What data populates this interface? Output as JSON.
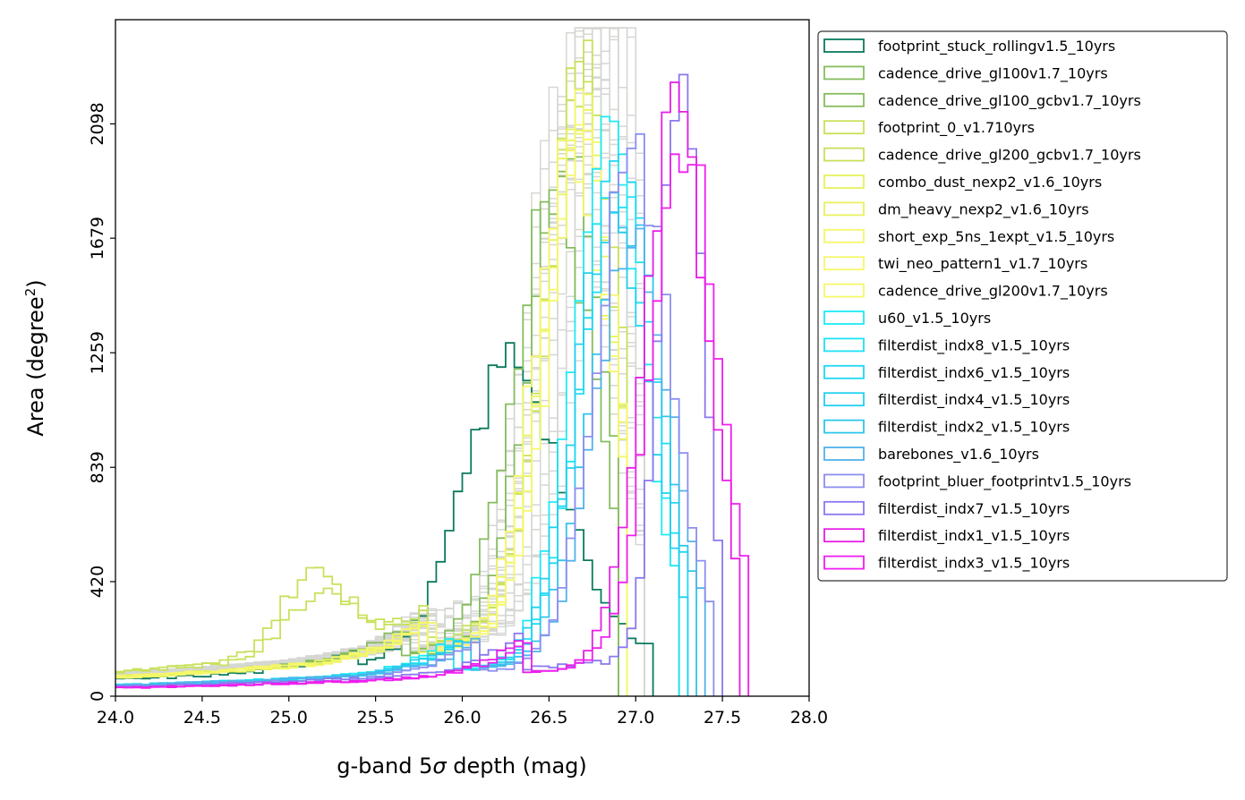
{
  "chart_data": {
    "type": "step-histogram",
    "xlabel_prefix": "g-band 5",
    "xlabel_sigma": "σ",
    "xlabel_suffix": " depth (mag)",
    "ylabel_main": "Area (degree",
    "ylabel_sup": "2",
    "ylabel_close": ")",
    "xlim": [
      24.0,
      28.0
    ],
    "ylim": [
      0,
      2480
    ],
    "xticks": [
      "24.0",
      "24.5",
      "25.0",
      "25.5",
      "26.0",
      "26.5",
      "27.0",
      "27.5",
      "28.0"
    ],
    "yticks": [
      "0",
      "420",
      "839",
      "1259",
      "1679",
      "2098"
    ],
    "grid": false,
    "legend_position": "outside-right-top",
    "series": [
      {
        "name": "footprint_stuck_rollingv1.5_10yrs",
        "color": "#0b7a5e",
        "start": 24.0,
        "end": 27.1,
        "base": 60,
        "peak": 26.3,
        "height": 1080,
        "width": 0.28
      },
      {
        "name": "cadence_drive_gl100v1.7_10yrs",
        "color": "#86bd5e",
        "start": 24.0,
        "end": 26.9,
        "base": 70,
        "peak": 26.55,
        "height": 1700,
        "width": 0.24
      },
      {
        "name": "cadence_drive_gl100_gcbv1.7_10yrs",
        "color": "#86bd5e",
        "start": 24.0,
        "end": 26.9,
        "base": 70,
        "peak": 26.62,
        "height": 1800,
        "width": 0.23
      },
      {
        "name": "footprint_0_v1.710yrs",
        "color": "#c8e15c",
        "start": 24.0,
        "end": 26.95,
        "base": 90,
        "peak": 26.7,
        "height": 1950,
        "width": 0.22,
        "bump": 25.15,
        "bump_h": 300
      },
      {
        "name": "cadence_drive_gl200_gcbv1.7_10yrs",
        "color": "#c8e15c",
        "start": 24.0,
        "end": 26.95,
        "base": 90,
        "peak": 26.72,
        "height": 2000,
        "width": 0.22,
        "bump": 25.2,
        "bump_h": 230
      },
      {
        "name": "combo_dust_nexp2_v1.6_10yrs",
        "color": "#e8f25c",
        "start": 24.0,
        "end": 26.95,
        "base": 70,
        "peak": 26.7,
        "height": 1900,
        "width": 0.22
      },
      {
        "name": "dm_heavy_nexp2_v1.6_10yrs",
        "color": "#e8f25c",
        "start": 24.0,
        "end": 26.95,
        "base": 70,
        "peak": 26.68,
        "height": 1850,
        "width": 0.22
      },
      {
        "name": "short_exp_5ns_1expt_v1.5_10yrs",
        "color": "#f5f76a",
        "start": 24.0,
        "end": 26.95,
        "base": 70,
        "peak": 26.7,
        "height": 1780,
        "width": 0.22
      },
      {
        "name": "twi_neo_pattern1_v1.7_10yrs",
        "color": "#f5f76a",
        "start": 24.0,
        "end": 26.95,
        "base": 70,
        "peak": 26.73,
        "height": 1820,
        "width": 0.22
      },
      {
        "name": "cadence_drive_gl200v1.7_10yrs",
        "color": "#f5f76a",
        "start": 24.0,
        "end": 26.95,
        "base": 70,
        "peak": 26.65,
        "height": 1880,
        "width": 0.22
      },
      {
        "name": "u60_v1.5_10yrs",
        "color": "#1eeaf5",
        "start": 24.0,
        "end": 27.25,
        "base": 40,
        "peak": 26.85,
        "height": 1850,
        "width": 0.22
      },
      {
        "name": "filterdist_indx8_v1.5_10yrs",
        "color": "#1ee2f5",
        "start": 24.0,
        "end": 27.25,
        "base": 40,
        "peak": 26.9,
        "height": 1750,
        "width": 0.22
      },
      {
        "name": "filterdist_indx6_v1.5_10yrs",
        "color": "#1ed8f5",
        "start": 24.0,
        "end": 27.3,
        "base": 40,
        "peak": 26.92,
        "height": 1800,
        "width": 0.22
      },
      {
        "name": "filterdist_indx4_v1.5_10yrs",
        "color": "#22d0f0",
        "start": 24.0,
        "end": 27.3,
        "base": 40,
        "peak": 26.88,
        "height": 1700,
        "width": 0.22
      },
      {
        "name": "filterdist_indx2_v1.5_10yrs",
        "color": "#30c5ec",
        "start": 24.0,
        "end": 27.35,
        "base": 40,
        "peak": 26.95,
        "height": 1650,
        "width": 0.22
      },
      {
        "name": "barebones_v1.6_10yrs",
        "color": "#52b2ea",
        "start": 24.0,
        "end": 27.4,
        "base": 40,
        "peak": 27.0,
        "height": 1600,
        "width": 0.22
      },
      {
        "name": "footprint_bluer_footprintv1.5_10yrs",
        "color": "#8e8ef0",
        "start": 24.0,
        "end": 27.45,
        "base": 35,
        "peak": 27.0,
        "height": 1900,
        "width": 0.22
      },
      {
        "name": "filterdist_indx7_v1.5_10yrs",
        "color": "#8a78f0",
        "start": 24.0,
        "end": 27.5,
        "base": 35,
        "peak": 27.27,
        "height": 2260,
        "width": 0.12
      },
      {
        "name": "filterdist_indx1_v1.5_10yrs",
        "color": "#e61ee6",
        "start": 24.0,
        "end": 27.6,
        "base": 30,
        "peak": 27.25,
        "height": 2000,
        "width": 0.2
      },
      {
        "name": "filterdist_indx3_v1.5_10yrs",
        "color": "#f01ef0",
        "start": 24.0,
        "end": 27.65,
        "base": 30,
        "peak": 27.3,
        "height": 1950,
        "width": 0.2
      }
    ],
    "background_series": {
      "color": "#d5d7d3",
      "count": 24,
      "start": 24.0,
      "end": 27.05,
      "base": 80,
      "peak_min": 26.6,
      "peak_max": 26.95,
      "height_min": 1700,
      "height_max": 2360,
      "width": 0.24
    }
  }
}
